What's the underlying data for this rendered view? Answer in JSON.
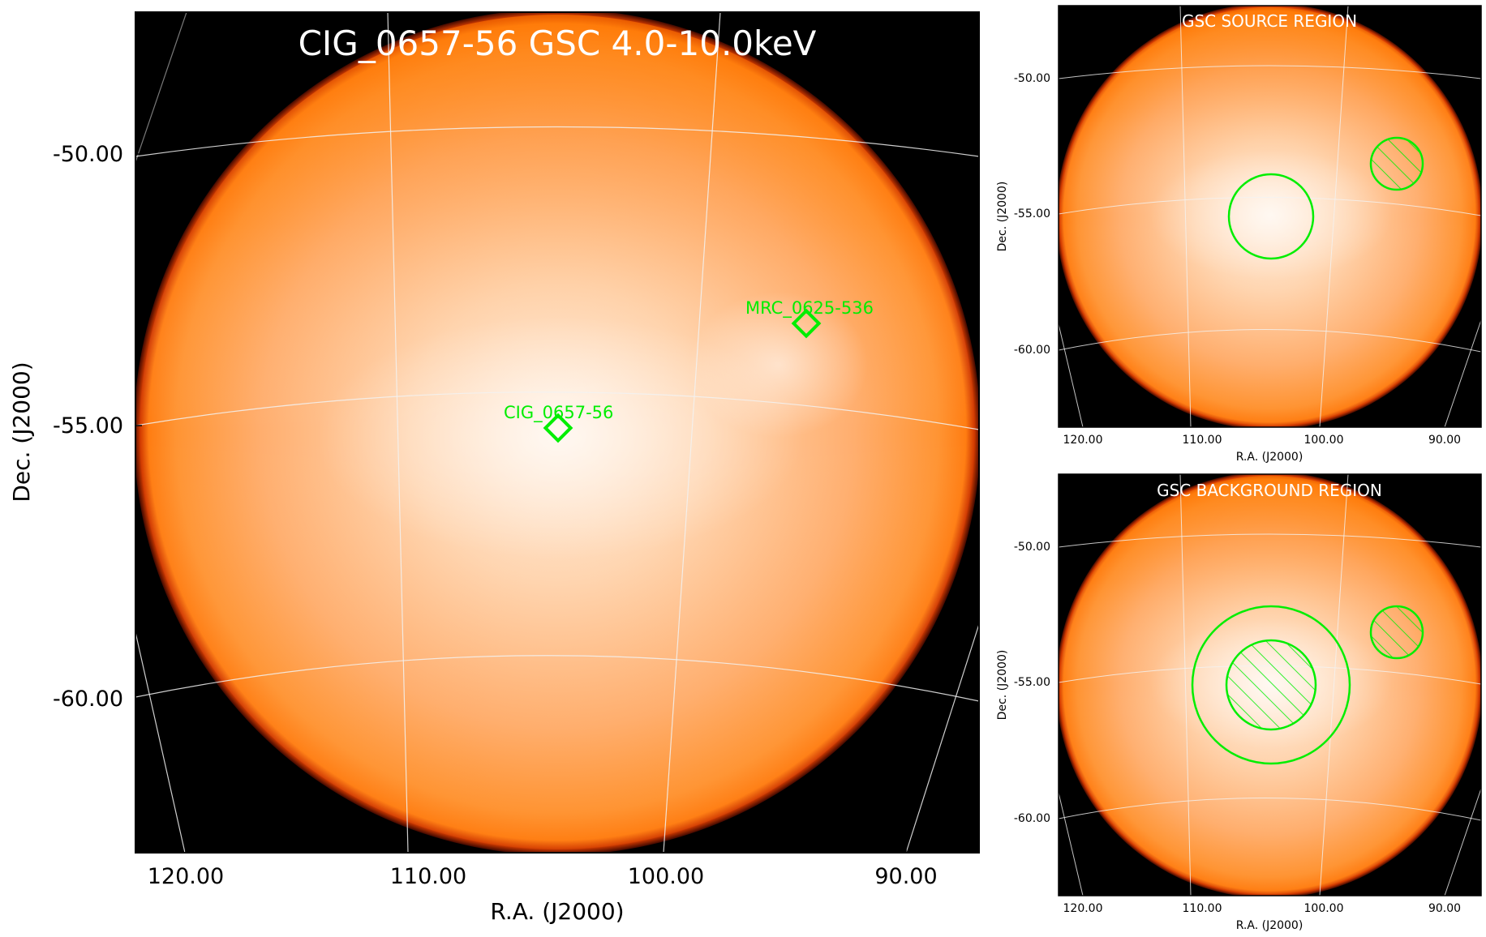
{
  "colors": {
    "background": "#000000",
    "disk_edge": "#a01800",
    "disk_outer": "#ff8a20",
    "disk_mid": "#ffb070",
    "disk_center": "#fff2e6",
    "grid": "#e8e8e8",
    "region": "#00ee00",
    "title_text": "#ffffff",
    "axis_text": "#000000"
  },
  "main_panel": {
    "title": "CIG_0657-56 GSC 4.0-10.0keV",
    "xlabel": "R.A. (J2000)",
    "ylabel": "Dec. (J2000)",
    "xticks": [
      "120.00",
      "110.00",
      "100.00",
      "90.00"
    ],
    "yticks": [
      "-50.00",
      "-55.00",
      "-60.00"
    ],
    "sources": [
      {
        "name": "MRC_0625-536",
        "ra": 94.0,
        "dec": -53.5,
        "marker": "diamond"
      },
      {
        "name": "CIG_0657-56",
        "ra": 104.4,
        "dec": -55.2,
        "marker": "diamond"
      }
    ]
  },
  "source_panel": {
    "title": "GSC SOURCE REGION",
    "xlabel": "R.A. (J2000)",
    "ylabel": "Dec. (J2000)",
    "xticks": [
      "120.00",
      "110.00",
      "100.00",
      "90.00"
    ],
    "yticks": [
      "-50.00",
      "-55.00",
      "-60.00"
    ],
    "regions": [
      {
        "type": "circle",
        "role": "source",
        "ra": 104.4,
        "dec": -55.2,
        "radius_deg": 1.5
      },
      {
        "type": "circle",
        "role": "excluded",
        "hatched": true,
        "ra": 94.0,
        "dec": -53.5,
        "radius_deg": 1.0
      }
    ]
  },
  "background_panel": {
    "title": "GSC BACKGROUND REGION",
    "xlabel": "R.A. (J2000)",
    "ylabel": "Dec. (J2000)",
    "xticks": [
      "120.00",
      "110.00",
      "100.00",
      "90.00"
    ],
    "yticks": [
      "-50.00",
      "-55.00",
      "-60.00"
    ],
    "regions": [
      {
        "type": "annulus",
        "role": "background",
        "ra": 104.4,
        "dec": -55.2,
        "inner_radius_deg": 1.7,
        "outer_radius_deg": 3.0,
        "inner_hatched": true
      },
      {
        "type": "circle",
        "role": "excluded",
        "hatched": true,
        "ra": 94.0,
        "dec": -53.5,
        "radius_deg": 1.0
      }
    ]
  }
}
